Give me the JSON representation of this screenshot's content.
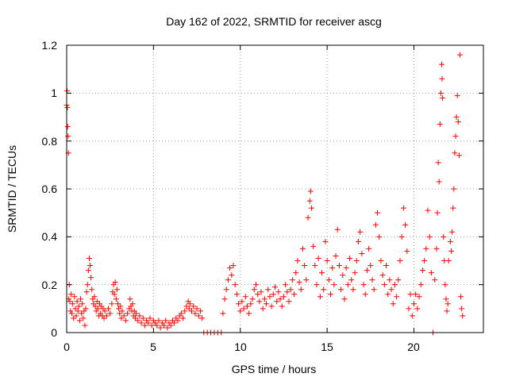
{
  "chart_data": {
    "type": "scatter",
    "title": "Day 162 of 2022, SRMTID for receiver ascg",
    "xlabel": "GPS time / hours",
    "ylabel": "SRMTID / TECUs",
    "xlim": [
      0,
      24
    ],
    "ylim": [
      0,
      1.2
    ],
    "xticks": [
      0,
      5,
      10,
      15,
      20
    ],
    "xtick_labels": [
      "0",
      "5",
      "10",
      "15",
      "20"
    ],
    "yticks": [
      0,
      0.2,
      0.4,
      0.6,
      0.8,
      1.0,
      1.2
    ],
    "ytick_labels": [
      "0",
      "0.2",
      "0.4",
      "0.6",
      "0.8",
      "1",
      "1.2"
    ],
    "grid": true,
    "marker": "+",
    "color": "#ff0000",
    "series": [
      {
        "name": "ascg",
        "points": [
          [
            0.0,
            0.95
          ],
          [
            0.02,
            1.01
          ],
          [
            0.04,
            0.94
          ],
          [
            0.06,
            0.86
          ],
          [
            0.08,
            0.82
          ],
          [
            0.1,
            0.75
          ],
          [
            0.12,
            0.14
          ],
          [
            0.15,
            0.2
          ],
          [
            0.18,
            0.13
          ],
          [
            0.22,
            0.09
          ],
          [
            0.26,
            0.16
          ],
          [
            0.3,
            0.08
          ],
          [
            0.35,
            0.12
          ],
          [
            0.4,
            0.06
          ],
          [
            0.45,
            0.15
          ],
          [
            0.5,
            0.1
          ],
          [
            0.55,
            0.07
          ],
          [
            0.6,
            0.13
          ],
          [
            0.65,
            0.09
          ],
          [
            0.7,
            0.11
          ],
          [
            0.75,
            0.05
          ],
          [
            0.8,
            0.14
          ],
          [
            0.85,
            0.08
          ],
          [
            0.9,
            0.12
          ],
          [
            0.95,
            0.06
          ],
          [
            1.0,
            0.09
          ],
          [
            1.05,
            0.03
          ],
          [
            1.1,
            0.1
          ],
          [
            1.15,
            0.17
          ],
          [
            1.2,
            0.2
          ],
          [
            1.25,
            0.26
          ],
          [
            1.3,
            0.31
          ],
          [
            1.35,
            0.28
          ],
          [
            1.4,
            0.23
          ],
          [
            1.45,
            0.18
          ],
          [
            1.5,
            0.14
          ],
          [
            1.55,
            0.12
          ],
          [
            1.6,
            0.15
          ],
          [
            1.65,
            0.11
          ],
          [
            1.7,
            0.09
          ],
          [
            1.75,
            0.13
          ],
          [
            1.8,
            0.1
          ],
          [
            1.85,
            0.07
          ],
          [
            1.9,
            0.12
          ],
          [
            1.95,
            0.08
          ],
          [
            2.0,
            0.11
          ],
          [
            2.05,
            0.07
          ],
          [
            2.1,
            0.1
          ],
          [
            2.15,
            0.06
          ],
          [
            2.2,
            0.09
          ],
          [
            2.3,
            0.07
          ],
          [
            2.4,
            0.1
          ],
          [
            2.5,
            0.08
          ],
          [
            2.6,
            0.12
          ],
          [
            2.65,
            0.17
          ],
          [
            2.7,
            0.2
          ],
          [
            2.75,
            0.16
          ],
          [
            2.8,
            0.21
          ],
          [
            2.85,
            0.14
          ],
          [
            2.9,
            0.18
          ],
          [
            2.95,
            0.12
          ],
          [
            3.0,
            0.1
          ],
          [
            3.05,
            0.08
          ],
          [
            3.1,
            0.11
          ],
          [
            3.15,
            0.06
          ],
          [
            3.2,
            0.09
          ],
          [
            3.3,
            0.07
          ],
          [
            3.4,
            0.05
          ],
          [
            3.5,
            0.08
          ],
          [
            3.6,
            0.1
          ],
          [
            3.65,
            0.14
          ],
          [
            3.7,
            0.11
          ],
          [
            3.75,
            0.09
          ],
          [
            3.8,
            0.12
          ],
          [
            3.85,
            0.07
          ],
          [
            3.9,
            0.09
          ],
          [
            3.95,
            0.06
          ],
          [
            4.0,
            0.08
          ],
          [
            4.1,
            0.05
          ],
          [
            4.2,
            0.07
          ],
          [
            4.3,
            0.04
          ],
          [
            4.4,
            0.06
          ],
          [
            4.5,
            0.03
          ],
          [
            4.6,
            0.05
          ],
          [
            4.7,
            0.04
          ],
          [
            4.8,
            0.06
          ],
          [
            4.9,
            0.03
          ],
          [
            5.0,
            0.05
          ],
          [
            5.1,
            0.04
          ],
          [
            5.2,
            0.03
          ],
          [
            5.3,
            0.05
          ],
          [
            5.4,
            0.02
          ],
          [
            5.5,
            0.04
          ],
          [
            5.6,
            0.03
          ],
          [
            5.7,
            0.05
          ],
          [
            5.8,
            0.02
          ],
          [
            5.9,
            0.04
          ],
          [
            6.0,
            0.03
          ],
          [
            6.1,
            0.05
          ],
          [
            6.2,
            0.04
          ],
          [
            6.3,
            0.06
          ],
          [
            6.4,
            0.05
          ],
          [
            6.5,
            0.07
          ],
          [
            6.6,
            0.08
          ],
          [
            6.7,
            0.06
          ],
          [
            6.8,
            0.09
          ],
          [
            6.9,
            0.11
          ],
          [
            7.0,
            0.13
          ],
          [
            7.05,
            0.1
          ],
          [
            7.1,
            0.12
          ],
          [
            7.2,
            0.09
          ],
          [
            7.3,
            0.11
          ],
          [
            7.4,
            0.08
          ],
          [
            7.5,
            0.1
          ],
          [
            7.6,
            0.07
          ],
          [
            7.7,
            0.09
          ],
          [
            7.8,
            0.06
          ],
          [
            7.9,
            0.0
          ],
          [
            8.1,
            0.0
          ],
          [
            8.3,
            0.0
          ],
          [
            8.5,
            0.0
          ],
          [
            8.7,
            0.0
          ],
          [
            8.9,
            0.0
          ],
          [
            9.0,
            0.08
          ],
          [
            9.1,
            0.14
          ],
          [
            9.2,
            0.18
          ],
          [
            9.3,
            0.22
          ],
          [
            9.4,
            0.27
          ],
          [
            9.5,
            0.24
          ],
          [
            9.6,
            0.28
          ],
          [
            9.7,
            0.2
          ],
          [
            9.8,
            0.16
          ],
          [
            9.9,
            0.12
          ],
          [
            10.0,
            0.09
          ],
          [
            10.1,
            0.13
          ],
          [
            10.2,
            0.1
          ],
          [
            10.3,
            0.15
          ],
          [
            10.4,
            0.11
          ],
          [
            10.5,
            0.08
          ],
          [
            10.6,
            0.12
          ],
          [
            10.7,
            0.14
          ],
          [
            10.8,
            0.18
          ],
          [
            10.9,
            0.2
          ],
          [
            11.0,
            0.16
          ],
          [
            11.1,
            0.13
          ],
          [
            11.2,
            0.17
          ],
          [
            11.3,
            0.1
          ],
          [
            11.4,
            0.14
          ],
          [
            11.5,
            0.12
          ],
          [
            11.6,
            0.18
          ],
          [
            11.7,
            0.15
          ],
          [
            11.8,
            0.11
          ],
          [
            11.9,
            0.16
          ],
          [
            12.0,
            0.19
          ],
          [
            12.1,
            0.13
          ],
          [
            12.2,
            0.17
          ],
          [
            12.3,
            0.14
          ],
          [
            12.4,
            0.11
          ],
          [
            12.5,
            0.15
          ],
          [
            12.6,
            0.2
          ],
          [
            12.7,
            0.17
          ],
          [
            12.8,
            0.13
          ],
          [
            12.9,
            0.18
          ],
          [
            13.0,
            0.22
          ],
          [
            13.1,
            0.16
          ],
          [
            13.2,
            0.25
          ],
          [
            13.3,
            0.3
          ],
          [
            13.4,
            0.21
          ],
          [
            13.5,
            0.18
          ],
          [
            13.6,
            0.35
          ],
          [
            13.7,
            0.28
          ],
          [
            13.8,
            0.22
          ],
          [
            13.9,
            0.48
          ],
          [
            14.0,
            0.55
          ],
          [
            14.05,
            0.59
          ],
          [
            14.1,
            0.52
          ],
          [
            14.2,
            0.36
          ],
          [
            14.3,
            0.28
          ],
          [
            14.4,
            0.2
          ],
          [
            14.5,
            0.31
          ],
          [
            14.6,
            0.15
          ],
          [
            14.7,
            0.25
          ],
          [
            14.8,
            0.18
          ],
          [
            14.9,
            0.38
          ],
          [
            15.0,
            0.3
          ],
          [
            15.1,
            0.22
          ],
          [
            15.2,
            0.16
          ],
          [
            15.3,
            0.27
          ],
          [
            15.4,
            0.2
          ],
          [
            15.5,
            0.32
          ],
          [
            15.6,
            0.43
          ],
          [
            15.7,
            0.28
          ],
          [
            15.8,
            0.18
          ],
          [
            15.9,
            0.24
          ],
          [
            16.0,
            0.14
          ],
          [
            16.1,
            0.27
          ],
          [
            16.2,
            0.2
          ],
          [
            16.3,
            0.31
          ],
          [
            16.4,
            0.22
          ],
          [
            16.5,
            0.18
          ],
          [
            16.6,
            0.25
          ],
          [
            16.7,
            0.3
          ],
          [
            16.8,
            0.38
          ],
          [
            16.9,
            0.42
          ],
          [
            17.0,
            0.33
          ],
          [
            17.1,
            0.2
          ],
          [
            17.2,
            0.16
          ],
          [
            17.3,
            0.26
          ],
          [
            17.4,
            0.35
          ],
          [
            17.5,
            0.28
          ],
          [
            17.6,
            0.22
          ],
          [
            17.7,
            0.18
          ],
          [
            17.8,
            0.45
          ],
          [
            17.9,
            0.5
          ],
          [
            18.0,
            0.4
          ],
          [
            18.1,
            0.3
          ],
          [
            18.2,
            0.24
          ],
          [
            18.3,
            0.2
          ],
          [
            18.4,
            0.28
          ],
          [
            18.5,
            0.16
          ],
          [
            18.6,
            0.22
          ],
          [
            18.7,
            0.18
          ],
          [
            18.8,
            0.12
          ],
          [
            18.9,
            0.2
          ],
          [
            19.0,
            0.15
          ],
          [
            19.1,
            0.22
          ],
          [
            19.2,
            0.3
          ],
          [
            19.3,
            0.4
          ],
          [
            19.4,
            0.52
          ],
          [
            19.5,
            0.45
          ],
          [
            19.6,
            0.34
          ],
          [
            19.7,
            0.1
          ],
          [
            19.8,
            0.16
          ],
          [
            19.9,
            0.07
          ],
          [
            20.0,
            0.12
          ],
          [
            20.1,
            0.16
          ],
          [
            20.2,
            0.1
          ],
          [
            20.3,
            0.15
          ],
          [
            20.4,
            0.2
          ],
          [
            20.5,
            0.26
          ],
          [
            20.6,
            0.3
          ],
          [
            20.7,
            0.35
          ],
          [
            20.8,
            0.51
          ],
          [
            20.9,
            0.4
          ],
          [
            21.0,
            0.25
          ],
          [
            21.1,
            0.0
          ],
          [
            21.2,
            0.22
          ],
          [
            21.3,
            0.35
          ],
          [
            21.35,
            0.5
          ],
          [
            21.4,
            0.71
          ],
          [
            21.45,
            0.63
          ],
          [
            21.5,
            0.87
          ],
          [
            21.55,
            1.0
          ],
          [
            21.6,
            1.12
          ],
          [
            21.62,
            1.06
          ],
          [
            21.65,
            0.98
          ],
          [
            21.7,
            0.4
          ],
          [
            21.75,
            0.3
          ],
          [
            21.8,
            0.2
          ],
          [
            21.85,
            0.14
          ],
          [
            21.9,
            0.09
          ],
          [
            21.95,
            0.12
          ],
          [
            22.0,
            0.3
          ],
          [
            22.1,
            0.38
          ],
          [
            22.15,
            0.34
          ],
          [
            22.2,
            0.42
          ],
          [
            22.25,
            0.52
          ],
          [
            22.3,
            0.6
          ],
          [
            22.35,
            0.75
          ],
          [
            22.4,
            0.82
          ],
          [
            22.45,
            0.9
          ],
          [
            22.5,
            0.99
          ],
          [
            22.55,
            0.88
          ],
          [
            22.6,
            0.74
          ],
          [
            22.65,
            1.16
          ],
          [
            22.7,
            0.15
          ],
          [
            22.75,
            0.1
          ],
          [
            22.8,
            0.07
          ]
        ]
      }
    ]
  }
}
